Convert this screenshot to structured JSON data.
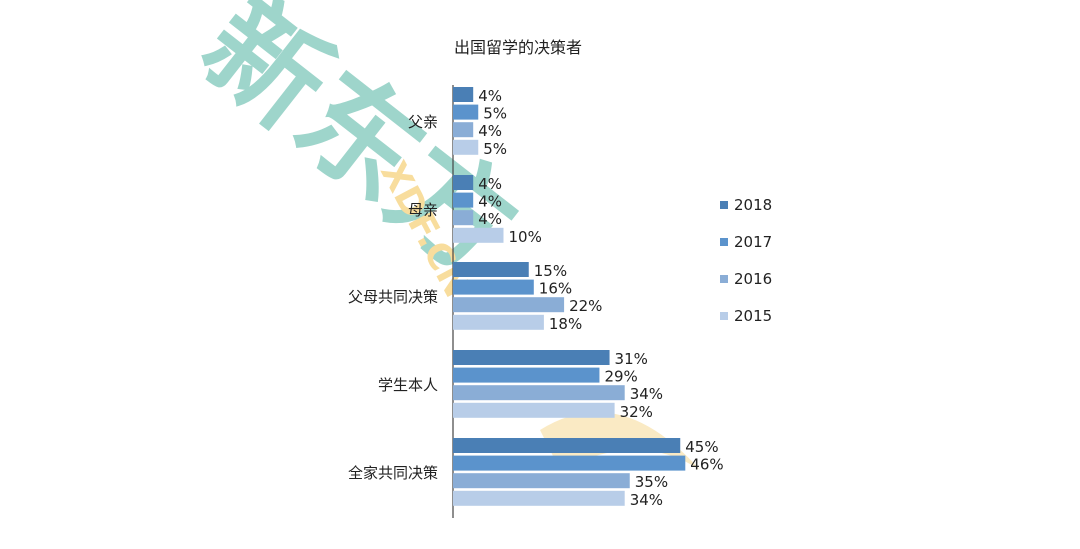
{
  "watermark": {
    "brand_text": "新东方",
    "domain_text": "XDF.CN",
    "color": "#4fb3a0",
    "accent_color": "#f2c14e"
  },
  "chart_data": {
    "type": "bar",
    "orientation": "horizontal",
    "title": "出国留学的决策者",
    "categories": [
      "父亲",
      "母亲",
      "父母共同决策",
      "学生本人",
      "全家共同决策"
    ],
    "series": [
      {
        "name": "2018",
        "values": [
          4,
          4,
          15,
          31,
          45
        ],
        "labels": [
          "4%",
          "4%",
          "15%",
          "31%",
          "45%"
        ],
        "color": "#4a7fb5"
      },
      {
        "name": "2017",
        "values": [
          5,
          4,
          16,
          29,
          46
        ],
        "labels": [
          "5%",
          "4%",
          "16%",
          "29%",
          "46%"
        ],
        "color": "#5b93cc"
      },
      {
        "name": "2016",
        "values": [
          4,
          4,
          22,
          34,
          35
        ],
        "labels": [
          "4%",
          "4%",
          "22%",
          "34%",
          "35%"
        ],
        "color": "#8aadd6"
      },
      {
        "name": "2015",
        "values": [
          5,
          10,
          18,
          32,
          34
        ],
        "labels": [
          "5%",
          "10%",
          "18%",
          "32%",
          "34%"
        ],
        "color": "#b8cde8"
      }
    ],
    "xlim": [
      0,
      50
    ],
    "grid": false,
    "legend_position": "right",
    "value_format": "percent"
  }
}
